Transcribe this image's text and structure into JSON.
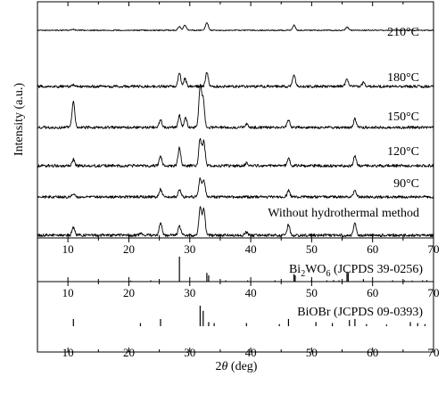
{
  "chart_data": {
    "type": "line",
    "xlabel_prefix": "2",
    "xlabel_symbol": "θ",
    "xlabel_suffix": " (deg)",
    "ylabel": "Intensity (a.u.)",
    "xlim": [
      5,
      70
    ],
    "xticks": [
      10,
      20,
      30,
      40,
      50,
      60,
      70
    ],
    "series": [
      {
        "name": "210°C",
        "peaks": [
          [
            28.3,
            0.16
          ],
          [
            29.2,
            0.22
          ],
          [
            32.8,
            0.35
          ],
          [
            47.1,
            0.22
          ],
          [
            55.8,
            0.14
          ],
          [
            10.9,
            0.05
          ]
        ]
      },
      {
        "name": "180°C",
        "peaks": [
          [
            28.3,
            0.5
          ],
          [
            29.2,
            0.28
          ],
          [
            32.8,
            0.55
          ],
          [
            47.1,
            0.45
          ],
          [
            55.8,
            0.3
          ],
          [
            58.5,
            0.14
          ],
          [
            10.9,
            0.07
          ]
        ]
      },
      {
        "name": "150°C",
        "peaks": [
          [
            10.9,
            0.75
          ],
          [
            25.2,
            0.22
          ],
          [
            28.3,
            0.35
          ],
          [
            29.3,
            0.3
          ],
          [
            31.7,
            1.2
          ],
          [
            32.2,
            0.8
          ],
          [
            46.2,
            0.22
          ],
          [
            57.1,
            0.25
          ],
          [
            39.3,
            0.1
          ]
        ]
      },
      {
        "name": "120°C",
        "peaks": [
          [
            10.9,
            0.2
          ],
          [
            25.2,
            0.3
          ],
          [
            28.3,
            0.55
          ],
          [
            31.7,
            0.85
          ],
          [
            32.3,
            0.75
          ],
          [
            46.2,
            0.25
          ],
          [
            57.1,
            0.3
          ],
          [
            39.3,
            0.08
          ]
        ]
      },
      {
        "name": "90°C",
        "peaks": [
          [
            10.9,
            0.12
          ],
          [
            25.2,
            0.25
          ],
          [
            28.3,
            0.25
          ],
          [
            31.7,
            0.6
          ],
          [
            32.3,
            0.55
          ],
          [
            46.2,
            0.22
          ],
          [
            57.1,
            0.2
          ]
        ]
      },
      {
        "name": "Without hydrothermal method",
        "peaks": [
          [
            10.9,
            0.25
          ],
          [
            25.2,
            0.4
          ],
          [
            28.3,
            0.3
          ],
          [
            31.7,
            0.85
          ],
          [
            32.3,
            0.8
          ],
          [
            46.2,
            0.32
          ],
          [
            57.1,
            0.35
          ],
          [
            39.3,
            0.1
          ],
          [
            22.0,
            0.08
          ]
        ]
      }
    ],
    "references": [
      {
        "name_main": "Bi",
        "name_sub1": "2",
        "name_mid": "WO",
        "name_sub2": "6",
        "name_tail": " (JCPDS 39-0256)",
        "sticks": [
          [
            28.3,
            1.0
          ],
          [
            32.8,
            0.35
          ],
          [
            33.1,
            0.25
          ],
          [
            47.1,
            0.3
          ],
          [
            47.3,
            0.25
          ],
          [
            55.8,
            0.4
          ],
          [
            56.0,
            0.35
          ],
          [
            58.5,
            0.1
          ],
          [
            20.3,
            0.04
          ],
          [
            23.6,
            0.05
          ],
          [
            35.9,
            0.05
          ],
          [
            39.5,
            0.05
          ],
          [
            44.0,
            0.05
          ],
          [
            50.0,
            0.06
          ],
          [
            52.5,
            0.05
          ],
          [
            53.6,
            0.06
          ],
          [
            54.5,
            0.05
          ],
          [
            63.3,
            0.05
          ],
          [
            65.2,
            0.05
          ],
          [
            66.5,
            0.04
          ],
          [
            68.2,
            0.05
          ],
          [
            68.9,
            0.06
          ]
        ]
      },
      {
        "name_main": "BiOBr (JCPDS 09-0393)",
        "sticks": [
          [
            10.9,
            0.35
          ],
          [
            21.9,
            0.15
          ],
          [
            25.2,
            0.35
          ],
          [
            31.7,
            1.0
          ],
          [
            32.2,
            0.75
          ],
          [
            33.1,
            0.2
          ],
          [
            34.0,
            0.15
          ],
          [
            39.3,
            0.15
          ],
          [
            44.7,
            0.1
          ],
          [
            46.2,
            0.35
          ],
          [
            50.7,
            0.2
          ],
          [
            53.4,
            0.15
          ],
          [
            56.2,
            0.3
          ],
          [
            57.1,
            0.35
          ],
          [
            59.0,
            0.1
          ],
          [
            62.3,
            0.08
          ],
          [
            66.2,
            0.2
          ],
          [
            67.4,
            0.15
          ],
          [
            68.6,
            0.1
          ]
        ]
      }
    ]
  }
}
